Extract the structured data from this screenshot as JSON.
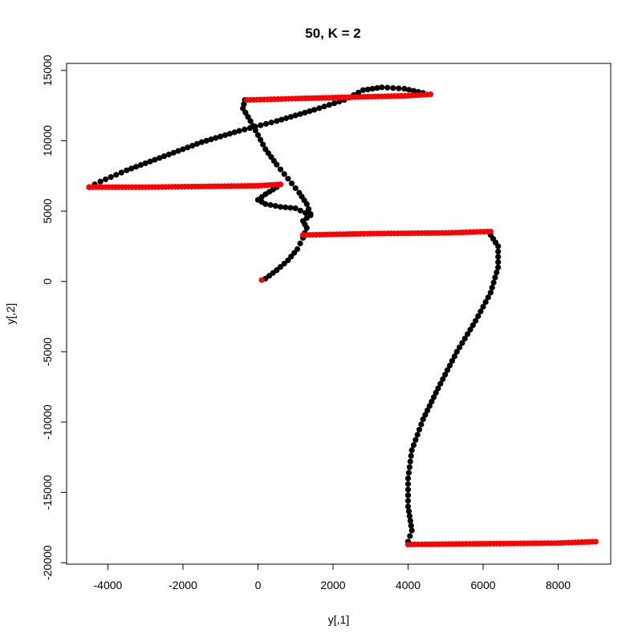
{
  "chart_data": {
    "type": "scatter",
    "title": "50, K = 2",
    "xlabel": "y[,1]",
    "ylabel": "y[,2]",
    "xlim": [
      -5100,
      9400
    ],
    "ylim": [
      -20100,
      15500
    ],
    "xticks": [
      -4000,
      -2000,
      0,
      2000,
      4000,
      6000,
      8000
    ],
    "yticks": [
      -20000,
      -15000,
      -10000,
      -5000,
      0,
      5000,
      10000,
      15000
    ],
    "grid": false,
    "legend": "none",
    "colors": {
      "group1": "#000000",
      "group2": "#ff0000"
    },
    "series": [
      {
        "color": "#000000",
        "segments": [
          [
            [
              200,
              200
            ],
            [
              500,
              800
            ],
            [
              800,
              1500
            ],
            [
              1050,
              2300
            ],
            [
              1200,
              3100
            ],
            [
              1300,
              3800
            ],
            [
              1200,
              4300
            ],
            [
              1400,
              4700
            ],
            [
              1000,
              5200
            ],
            [
              600,
              5300
            ],
            [
              200,
              5500
            ],
            [
              0,
              5800
            ],
            [
              200,
              6200
            ],
            [
              500,
              6700
            ]
          ],
          [
            [
              1400,
              4800
            ],
            [
              1300,
              5500
            ],
            [
              1100,
              6300
            ],
            [
              800,
              7300
            ],
            [
              500,
              8300
            ],
            [
              200,
              9400
            ],
            [
              0,
              10400
            ],
            [
              -200,
              11400
            ],
            [
              -400,
              12300
            ],
            [
              -350,
              12900
            ]
          ],
          [
            [
              -4500,
              6700
            ],
            [
              -4200,
              7100
            ],
            [
              -3500,
              7900
            ],
            [
              -2500,
              8900
            ],
            [
              -1500,
              9900
            ],
            [
              -500,
              10700
            ],
            [
              500,
              11400
            ],
            [
              1500,
              12200
            ],
            [
              2300,
              12900
            ],
            [
              2800,
              13600
            ],
            [
              3300,
              13800
            ],
            [
              3900,
              13700
            ],
            [
              4400,
              13400
            ]
          ],
          [
            [
              6200,
              3300
            ],
            [
              6400,
              2500
            ],
            [
              6400,
              1000
            ],
            [
              6200,
              -800
            ],
            [
              5800,
              -2800
            ],
            [
              5300,
              -5000
            ],
            [
              4800,
              -7600
            ],
            [
              4400,
              -9800
            ],
            [
              4100,
              -12000
            ],
            [
              4000,
              -14000
            ],
            [
              4000,
              -16000
            ],
            [
              4100,
              -17700
            ],
            [
              4000,
              -18500
            ]
          ]
        ]
      },
      {
        "color": "#ff0000",
        "segments": [
          [
            [
              100,
              100
            ]
          ],
          [
            [
              -4500,
              6700
            ],
            [
              -3000,
              6700
            ],
            [
              -1500,
              6750
            ],
            [
              0,
              6800
            ],
            [
              600,
              6900
            ]
          ],
          [
            [
              -300,
              12900
            ],
            [
              1000,
              13000
            ],
            [
              2500,
              13100
            ],
            [
              4000,
              13200
            ],
            [
              4600,
              13300
            ]
          ],
          [
            [
              1200,
              3300
            ],
            [
              3000,
              3400
            ],
            [
              5000,
              3450
            ],
            [
              6200,
              3550
            ]
          ],
          [
            [
              4000,
              -18700
            ],
            [
              6000,
              -18650
            ],
            [
              8000,
              -18600
            ],
            [
              9000,
              -18500
            ]
          ]
        ]
      }
    ]
  }
}
